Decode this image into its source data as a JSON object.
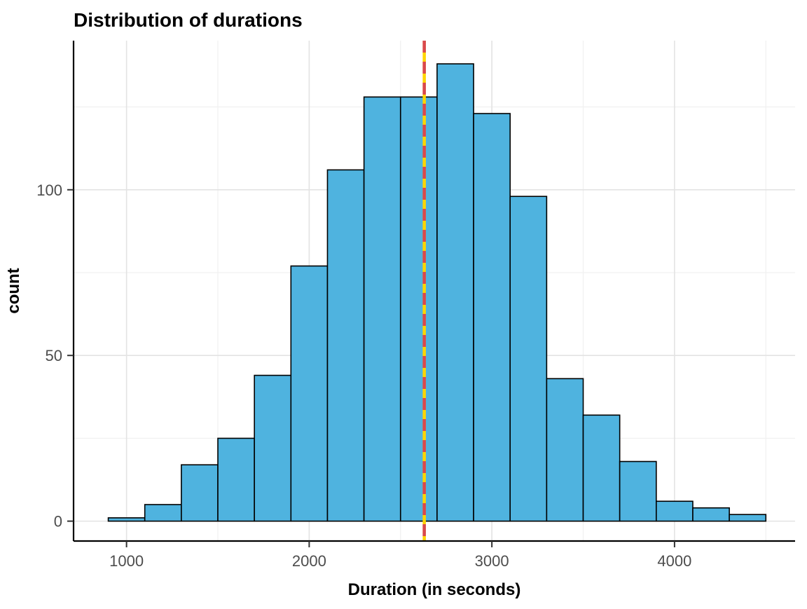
{
  "chart_data": {
    "type": "histogram",
    "title": "Distribution of durations",
    "xlabel": "Duration (in seconds)",
    "ylabel": "count",
    "bin_width": 200,
    "bin_starts": [
      900,
      1100,
      1300,
      1500,
      1700,
      1900,
      2100,
      2300,
      2500,
      2700,
      2900,
      3100,
      3300,
      3500,
      3700,
      3900,
      4100,
      4300
    ],
    "counts": [
      1,
      5,
      17,
      25,
      44,
      77,
      106,
      128,
      128,
      138,
      123,
      98,
      43,
      32,
      18,
      6,
      4,
      2
    ],
    "x_ticks": [
      1000,
      2000,
      3000,
      4000
    ],
    "y_ticks": [
      0,
      50,
      100
    ],
    "x_minor": [
      1500,
      2500,
      3500,
      4500
    ],
    "y_minor": [
      25,
      75,
      125
    ],
    "xlim": [
      710,
      4660
    ],
    "ylim": [
      -6,
      145
    ],
    "grid": true,
    "legend": "none",
    "bar_fill": "#4FB3DF",
    "bar_stroke": "#000000",
    "grid_major_color": "#e3e3e3",
    "grid_minor_color": "#f1f1f1",
    "axis_color": "#000000",
    "tick_label_color": "#4d4d4d",
    "vlines": [
      {
        "value": 2630,
        "color": "#FFD500",
        "style": "solid"
      },
      {
        "value": 2630,
        "color": "#D9484E",
        "style": "dashed"
      }
    ]
  }
}
